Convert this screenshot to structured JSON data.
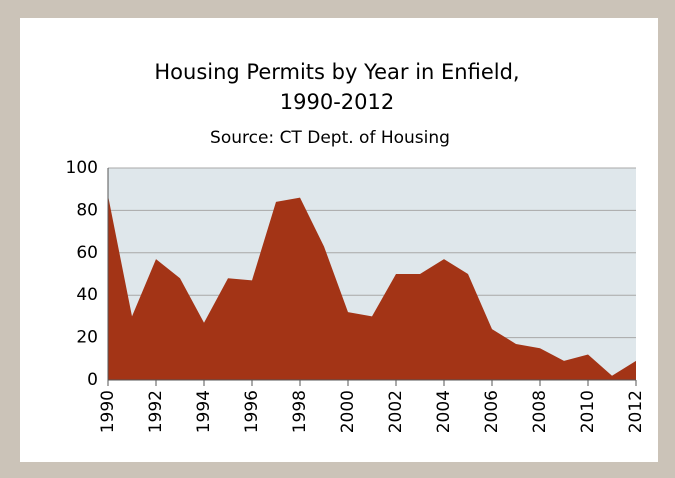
{
  "chart_data": {
    "type": "area",
    "title": [
      "Housing Permits by Year in Enfield,",
      "1990-2012"
    ],
    "subtitle": "Source: CT Dept. of Housing",
    "x": [
      1990,
      1991,
      1992,
      1993,
      1994,
      1995,
      1996,
      1997,
      1998,
      1999,
      2000,
      2001,
      2002,
      2003,
      2004,
      2005,
      2006,
      2007,
      2008,
      2009,
      2010,
      2011,
      2012
    ],
    "values": [
      87,
      30,
      57,
      48,
      27,
      48,
      47,
      84,
      86,
      63,
      32,
      30,
      50,
      50,
      57,
      50,
      24,
      17,
      15,
      9,
      12,
      2,
      9
    ],
    "color": "#a33416",
    "xlim": [
      1990,
      2012
    ],
    "xticks": [
      1990,
      1992,
      1994,
      1996,
      1998,
      2000,
      2002,
      2004,
      2006,
      2008,
      2010,
      2012
    ],
    "ylim": [
      0,
      100
    ],
    "yticks": [
      0,
      20,
      40,
      60,
      80,
      100
    ],
    "grid": true
  }
}
